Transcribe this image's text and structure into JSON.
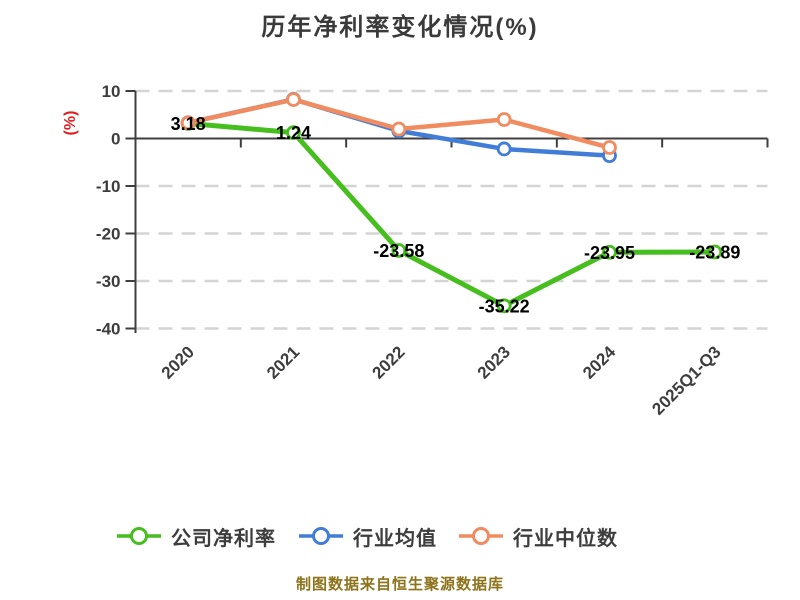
{
  "title": "历年净利率变化情况(%)",
  "y_axis_label": "(%)",
  "footer_note": "制图数据来自恒生聚源数据库",
  "colors": {
    "title_text": "#3a3a3a",
    "axis": "#3f3f3f",
    "tick_text": "#3d3d3d",
    "gridline": "#d4d4d4",
    "y_axis_label_text": "#e01e1e",
    "data_label_text": "#000000",
    "footer_text": "#8c7319"
  },
  "chart_data": {
    "type": "line",
    "title": "历年净利率变化情况(%)",
    "ylabel": "(%)",
    "categories": [
      "2020",
      "2021",
      "2022",
      "2023",
      "2024",
      "2025Q1-Q3"
    ],
    "series": [
      {
        "name": "公司净利率",
        "color": "#46be1e",
        "values": [
          3.18,
          1.24,
          -23.58,
          -35.22,
          -23.95,
          -23.89
        ],
        "point_labels": [
          "3.18",
          "1.24",
          "-23.58",
          "-35.22",
          "-23.95",
          "-23.89"
        ]
      },
      {
        "name": "行业均值",
        "color": "#417dd7",
        "values": [
          3.3,
          8.25,
          1.6,
          -2.2,
          -3.6,
          null
        ],
        "point_labels": null
      },
      {
        "name": "行业中位数",
        "color": "#f08c5f",
        "values": [
          3.3,
          8.2,
          2.0,
          4.0,
          -1.9,
          null
        ],
        "point_labels": null
      }
    ],
    "ylim": [
      -40,
      10
    ],
    "yticks": [
      10,
      0,
      -10,
      -20,
      -30,
      -40
    ],
    "grid": "horizontal-dashed",
    "legend_position": "bottom"
  }
}
